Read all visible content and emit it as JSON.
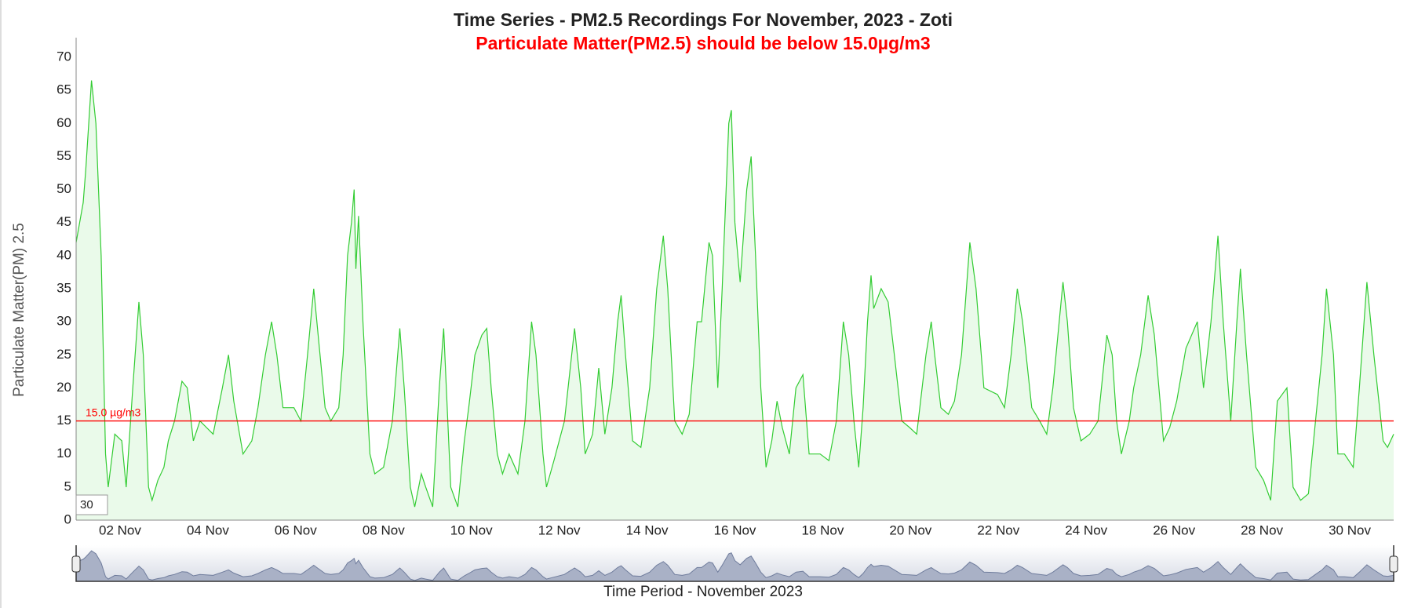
{
  "chart_data": {
    "type": "line",
    "title": "Time Series - PM2.5 Recordings For November, 2023 - Zoti",
    "subtitle": "Particulate Matter(PM2.5) should be below 15.0µg/m3",
    "ylabel": "Particulate Matter(PM) 2.5",
    "xlabel": "Time Period - November 2023",
    "color": "#33cc33",
    "x": [
      1,
      1.16,
      1.22,
      1.35,
      1.45,
      1.57,
      1.67,
      1.73,
      1.88,
      2.04,
      2.14,
      2.29,
      2.43,
      2.53,
      2.65,
      2.73,
      2.86,
      3,
      3.1,
      3.24,
      3.41,
      3.53,
      3.67,
      3.82,
      4.12,
      4.33,
      4.47,
      4.59,
      4.8,
      5,
      5.14,
      5.31,
      5.45,
      5.57,
      5.71,
      5.96,
      6.12,
      6.27,
      6.41,
      6.51,
      6.67,
      6.8,
      6.98,
      7.08,
      7.18,
      7.27,
      7.33,
      7.37,
      7.43,
      7.53,
      7.69,
      7.8,
      8,
      8.2,
      8.37,
      8.47,
      8.61,
      8.71,
      8.86,
      8.96,
      9.12,
      9.27,
      9.37,
      9.53,
      9.69,
      9.84,
      9.94,
      10.08,
      10.24,
      10.35,
      10.45,
      10.59,
      10.71,
      10.86,
      11.06,
      11.22,
      11.37,
      11.47,
      11.63,
      11.71,
      11.88,
      12.12,
      12.35,
      12.49,
      12.59,
      12.76,
      12.9,
      13.04,
      13.2,
      13.33,
      13.41,
      13.51,
      13.67,
      13.86,
      14.06,
      14.22,
      14.37,
      14.47,
      14.63,
      14.8,
      14.96,
      15.14,
      15.24,
      15.41,
      15.49,
      15.61,
      15.71,
      15.86,
      15.92,
      16,
      16.12,
      16.27,
      16.37,
      16.47,
      16.59,
      16.71,
      16.84,
      16.96,
      17.08,
      17.24,
      17.39,
      17.55,
      17.69,
      17.94,
      18.14,
      18.31,
      18.47,
      18.59,
      18.71,
      18.82,
      18.92,
      19.02,
      19.1,
      19.16,
      19.33,
      19.49,
      19.63,
      19.8,
      19.98,
      20.14,
      20.35,
      20.47,
      20.55,
      20.69,
      20.86,
      21,
      21.16,
      21.35,
      21.49,
      21.67,
      21.98,
      22.14,
      22.29,
      22.43,
      22.55,
      22.76,
      22.94,
      23.1,
      23.24,
      23.47,
      23.57,
      23.71,
      23.88,
      24.08,
      24.27,
      24.47,
      24.59,
      24.69,
      24.8,
      24.98,
      25.08,
      25.24,
      25.41,
      25.55,
      25.76,
      25.9,
      26.06,
      26.27,
      26.53,
      26.67,
      26.84,
      27,
      27.12,
      27.29,
      27.43,
      27.51,
      27.65,
      27.86,
      28.04,
      28.2,
      28.35,
      28.57,
      28.71,
      28.88,
      29.06,
      29.22,
      29.37,
      29.47,
      29.63,
      29.73,
      29.88,
      30.08,
      30.22,
      30.39,
      30.55,
      30.76,
      30.86,
      31
    ],
    "values": [
      42,
      48,
      53,
      66.5,
      60,
      40,
      10,
      5,
      13,
      12,
      5,
      20,
      33,
      25,
      5,
      3,
      6,
      8,
      12,
      15,
      21,
      20,
      12,
      15,
      13,
      20,
      25,
      18,
      10,
      12,
      17,
      25,
      30,
      25,
      17,
      17,
      15,
      25,
      35,
      28,
      17,
      15,
      17,
      25,
      40,
      45,
      50,
      38,
      46,
      30,
      10,
      7,
      8,
      15,
      29,
      20,
      5,
      2,
      7,
      5,
      2,
      20,
      29,
      5,
      2,
      12,
      17,
      25,
      28,
      29,
      20,
      10,
      7,
      10,
      7,
      15,
      30,
      25,
      10,
      5,
      9,
      15,
      29,
      20,
      10,
      13,
      23,
      13,
      20,
      30,
      34,
      25,
      12,
      11,
      20,
      35,
      43,
      35,
      15,
      13,
      16,
      30,
      30,
      42,
      40,
      20,
      35,
      60,
      62,
      45,
      36,
      50,
      55,
      40,
      20,
      8,
      12,
      18,
      14,
      10,
      20,
      22,
      10,
      10,
      9,
      15,
      30,
      25,
      15,
      8,
      17,
      30,
      37,
      32,
      35,
      33,
      25,
      15,
      14,
      13,
      25,
      30,
      25,
      17,
      16,
      18,
      25,
      42,
      35,
      20,
      19,
      17,
      25,
      35,
      30,
      17,
      15,
      13,
      20,
      36,
      30,
      17,
      12,
      13,
      15,
      28,
      25,
      15,
      10,
      15,
      20,
      25,
      34,
      28,
      12,
      14,
      18,
      26,
      30,
      20,
      30,
      43,
      30,
      15,
      30,
      38,
      25,
      8,
      6,
      3,
      18,
      20,
      5,
      3,
      4,
      15,
      25,
      35,
      25,
      10,
      10,
      8,
      20,
      36,
      25,
      12,
      11,
      13
    ],
    "xlim": [
      1,
      31
    ],
    "ylim": [
      0,
      70
    ],
    "xticks": [
      {
        "value": 2,
        "label": "02 Nov"
      },
      {
        "value": 4,
        "label": "04 Nov"
      },
      {
        "value": 6,
        "label": "06 Nov"
      },
      {
        "value": 8,
        "label": "08 Nov"
      },
      {
        "value": 10,
        "label": "10 Nov"
      },
      {
        "value": 12,
        "label": "12 Nov"
      },
      {
        "value": 14,
        "label": "14 Nov"
      },
      {
        "value": 16,
        "label": "16 Nov"
      },
      {
        "value": 18,
        "label": "18 Nov"
      },
      {
        "value": 20,
        "label": "20 Nov"
      },
      {
        "value": 22,
        "label": "22 Nov"
      },
      {
        "value": 24,
        "label": "24 Nov"
      },
      {
        "value": 26,
        "label": "26 Nov"
      },
      {
        "value": 28,
        "label": "28 Nov"
      },
      {
        "value": 30,
        "label": "30 Nov"
      }
    ],
    "yticks": [
      0,
      5,
      10,
      15,
      20,
      25,
      30,
      35,
      40,
      45,
      50,
      55,
      60,
      65,
      70
    ],
    "threshold": {
      "value": 15,
      "label": "15.0 µg/m3",
      "color": "#ff0000"
    },
    "rolling_period": 30,
    "range_selector": true
  }
}
